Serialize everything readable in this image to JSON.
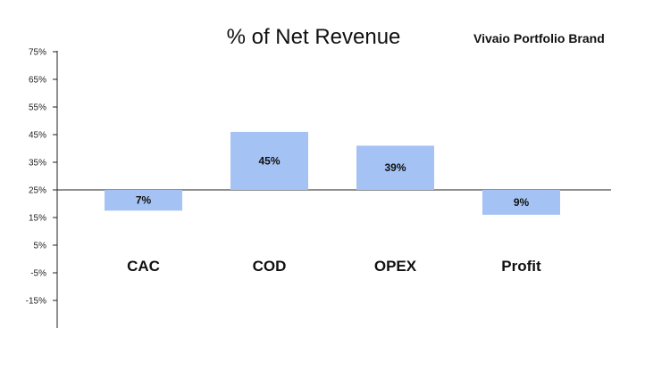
{
  "header": {
    "title": "% of Net Revenue",
    "brand": "Vivaio Portfolio Brand"
  },
  "chart_data": {
    "type": "bar",
    "title": "% of Net Revenue",
    "xlabel": "",
    "ylabel": "",
    "baseline": 25,
    "ylim": [
      -25,
      75
    ],
    "y_ticks": [
      "75%",
      "65%",
      "55%",
      "45%",
      "35%",
      "25%",
      "15%",
      "5%",
      "-5%",
      "-15%"
    ],
    "y_tick_values": [
      75,
      65,
      55,
      45,
      35,
      25,
      15,
      5,
      -5,
      -15
    ],
    "categories": [
      "CAC",
      "COD",
      "OPEX",
      "Profit"
    ],
    "values": [
      7,
      45,
      39,
      9
    ],
    "bar_ends": [
      17.5,
      46,
      41,
      16
    ],
    "value_labels": [
      "7%",
      "45%",
      "39%",
      "9%"
    ],
    "bar_color": "#a4c2f4",
    "grid": false
  }
}
